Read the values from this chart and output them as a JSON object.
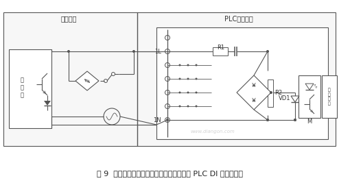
{
  "fig_width": 4.94,
  "fig_height": 2.67,
  "dpi": 100,
  "bg_color": "#ffffff",
  "line_color": "#555555",
  "title_text": "图 9  交流两线制开关量传感器与交流输入型 PLC DI 模块的接线",
  "label_waijie": "外部接线",
  "label_plc": "PLC内部接线",
  "label_1L": "1L",
  "label_1N": "1N",
  "label_R1": "R1",
  "label_R2": "R2",
  "label_VD1": "VD1",
  "label_M": "M",
  "label_zhudianlu": "主\n电\n路",
  "watermark": "www.diangon.com",
  "caption_fontsize": 8.0,
  "label_fontsize": 7.0,
  "small_fontsize": 6.0
}
